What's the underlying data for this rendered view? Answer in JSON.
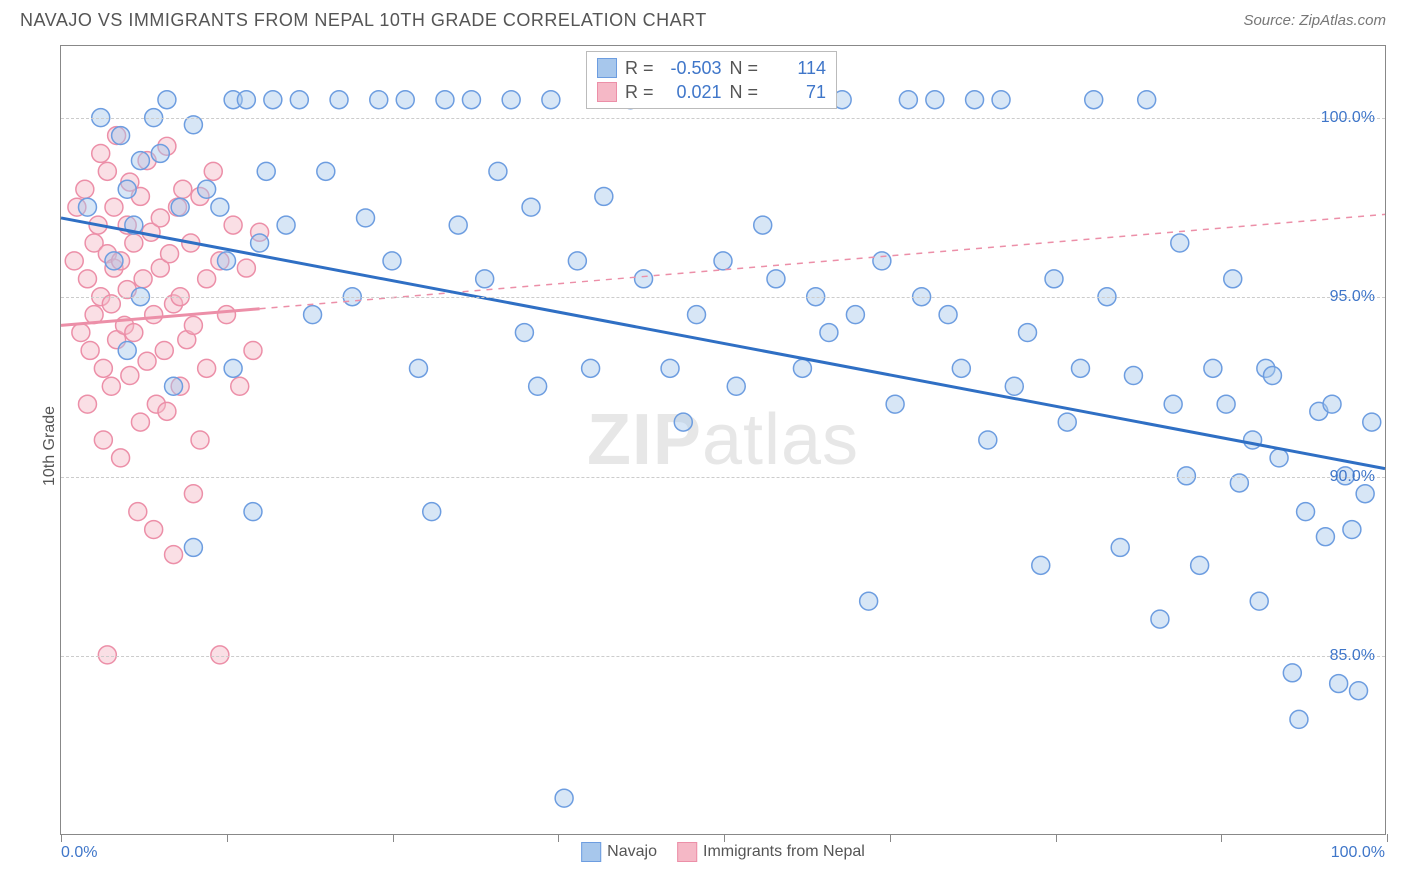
{
  "title": "NAVAJO VS IMMIGRANTS FROM NEPAL 10TH GRADE CORRELATION CHART",
  "source": "Source: ZipAtlas.com",
  "ylabel": "10th Grade",
  "watermark_bold": "ZIP",
  "watermark_rest": "atlas",
  "chart": {
    "type": "scatter",
    "xlim": [
      0,
      100
    ],
    "ylim": [
      80,
      102
    ],
    "x_left_label": "0.0%",
    "x_right_label": "100.0%",
    "xtick_positions": [
      0,
      12.5,
      25,
      37.5,
      50,
      62.5,
      75,
      87.5,
      100
    ],
    "ytick_positions": [
      85,
      90,
      95,
      100
    ],
    "ytick_labels": [
      "85.0%",
      "90.0%",
      "95.0%",
      "100.0%"
    ],
    "grid_color": "#cccccc",
    "background_color": "#ffffff",
    "marker_radius": 9,
    "marker_opacity": 0.45,
    "line_width": 3
  },
  "series": {
    "navajo": {
      "label": "Navajo",
      "color": "#a7c7ec",
      "stroke": "#6d9de0",
      "line_color": "#2f6fc4",
      "R": "-0.503",
      "N": "114",
      "trend": {
        "x1": 0,
        "y1": 97.2,
        "x2": 100,
        "y2": 90.2,
        "solid_until_x": 100
      },
      "points": [
        [
          2,
          97.5
        ],
        [
          3,
          100
        ],
        [
          4,
          96
        ],
        [
          4.5,
          99.5
        ],
        [
          5,
          98
        ],
        [
          5,
          93.5
        ],
        [
          5.5,
          97
        ],
        [
          6,
          98.8
        ],
        [
          6,
          95
        ],
        [
          7,
          100
        ],
        [
          7.5,
          99
        ],
        [
          8,
          100.5
        ],
        [
          8.5,
          92.5
        ],
        [
          9,
          97.5
        ],
        [
          10,
          99.8
        ],
        [
          10,
          88
        ],
        [
          11,
          98
        ],
        [
          12,
          97.5
        ],
        [
          12.5,
          96
        ],
        [
          13,
          100.5
        ],
        [
          13,
          93
        ],
        [
          14,
          100.5
        ],
        [
          14.5,
          89
        ],
        [
          15,
          96.5
        ],
        [
          15.5,
          98.5
        ],
        [
          16,
          100.5
        ],
        [
          17,
          97
        ],
        [
          18,
          100.5
        ],
        [
          19,
          94.5
        ],
        [
          20,
          98.5
        ],
        [
          21,
          100.5
        ],
        [
          22,
          95
        ],
        [
          23,
          97.2
        ],
        [
          24,
          100.5
        ],
        [
          25,
          96
        ],
        [
          26,
          100.5
        ],
        [
          27,
          93
        ],
        [
          28,
          89
        ],
        [
          29,
          100.5
        ],
        [
          30,
          97
        ],
        [
          31,
          100.5
        ],
        [
          32,
          95.5
        ],
        [
          33,
          98.5
        ],
        [
          34,
          100.5
        ],
        [
          35,
          94
        ],
        [
          35.5,
          97.5
        ],
        [
          36,
          92.5
        ],
        [
          37,
          100.5
        ],
        [
          38,
          81
        ],
        [
          39,
          96
        ],
        [
          40,
          93
        ],
        [
          41,
          97.8
        ],
        [
          43,
          100.5
        ],
        [
          44,
          95.5
        ],
        [
          46,
          93
        ],
        [
          47,
          91.5
        ],
        [
          48,
          94.5
        ],
        [
          50,
          96
        ],
        [
          51,
          92.5
        ],
        [
          53,
          97
        ],
        [
          54,
          95.5
        ],
        [
          56,
          93
        ],
        [
          57,
          95
        ],
        [
          58,
          94
        ],
        [
          59,
          100.5
        ],
        [
          60,
          94.5
        ],
        [
          61,
          86.5
        ],
        [
          62,
          96
        ],
        [
          63,
          92
        ],
        [
          64,
          100.5
        ],
        [
          65,
          95
        ],
        [
          66,
          100.5
        ],
        [
          67,
          94.5
        ],
        [
          68,
          93
        ],
        [
          69,
          100.5
        ],
        [
          70,
          91
        ],
        [
          71,
          100.5
        ],
        [
          72,
          92.5
        ],
        [
          73,
          94
        ],
        [
          74,
          87.5
        ],
        [
          75,
          95.5
        ],
        [
          76,
          91.5
        ],
        [
          77,
          93
        ],
        [
          78,
          100.5
        ],
        [
          79,
          95
        ],
        [
          80,
          88
        ],
        [
          81,
          92.8
        ],
        [
          82,
          100.5
        ],
        [
          83,
          86
        ],
        [
          84,
          92
        ],
        [
          84.5,
          96.5
        ],
        [
          85,
          90
        ],
        [
          86,
          87.5
        ],
        [
          87,
          93
        ],
        [
          88,
          92
        ],
        [
          88.5,
          95.5
        ],
        [
          89,
          89.8
        ],
        [
          90,
          91
        ],
        [
          90.5,
          86.5
        ],
        [
          91,
          93
        ],
        [
          91.5,
          92.8
        ],
        [
          92,
          90.5
        ],
        [
          93,
          84.5
        ],
        [
          93.5,
          83.2
        ],
        [
          94,
          89
        ],
        [
          95,
          91.8
        ],
        [
          95.5,
          88.3
        ],
        [
          96,
          92
        ],
        [
          96.5,
          84.2
        ],
        [
          97,
          90
        ],
        [
          97.5,
          88.5
        ],
        [
          98,
          84
        ],
        [
          98.5,
          89.5
        ],
        [
          99,
          91.5
        ]
      ]
    },
    "nepal": {
      "label": "Immigrants from Nepal",
      "color": "#f5b8c6",
      "stroke": "#ec8fa8",
      "line_color": "#ec8fa8",
      "R": "0.021",
      "N": "71",
      "trend": {
        "x1": 0,
        "y1": 94.2,
        "x2": 100,
        "y2": 97.3,
        "solid_until_x": 15
      },
      "points": [
        [
          1,
          96
        ],
        [
          1.2,
          97.5
        ],
        [
          1.5,
          94
        ],
        [
          1.8,
          98
        ],
        [
          2,
          95.5
        ],
        [
          2,
          92
        ],
        [
          2.2,
          93.5
        ],
        [
          2.5,
          96.5
        ],
        [
          2.5,
          94.5
        ],
        [
          2.8,
          97
        ],
        [
          3,
          99
        ],
        [
          3,
          95
        ],
        [
          3.2,
          93
        ],
        [
          3.2,
          91
        ],
        [
          3.5,
          96.2
        ],
        [
          3.5,
          98.5
        ],
        [
          3.8,
          94.8
        ],
        [
          3.8,
          92.5
        ],
        [
          4,
          97.5
        ],
        [
          4,
          95.8
        ],
        [
          4.2,
          99.5
        ],
        [
          4.2,
          93.8
        ],
        [
          4.5,
          96
        ],
        [
          4.5,
          90.5
        ],
        [
          4.8,
          94.2
        ],
        [
          5,
          97
        ],
        [
          5,
          95.2
        ],
        [
          5.2,
          98.2
        ],
        [
          5.2,
          92.8
        ],
        [
          5.5,
          96.5
        ],
        [
          5.5,
          94
        ],
        [
          5.8,
          89
        ],
        [
          6,
          97.8
        ],
        [
          6,
          91.5
        ],
        [
          6.2,
          95.5
        ],
        [
          6.5,
          93.2
        ],
        [
          6.5,
          98.8
        ],
        [
          6.8,
          96.8
        ],
        [
          7,
          94.5
        ],
        [
          7,
          88.5
        ],
        [
          7.2,
          92
        ],
        [
          7.5,
          97.2
        ],
        [
          7.5,
          95.8
        ],
        [
          7.8,
          93.5
        ],
        [
          8,
          99.2
        ],
        [
          8,
          91.8
        ],
        [
          8.2,
          96.2
        ],
        [
          8.5,
          94.8
        ],
        [
          8.5,
          87.8
        ],
        [
          8.8,
          97.5
        ],
        [
          9,
          95
        ],
        [
          9,
          92.5
        ],
        [
          9.2,
          98
        ],
        [
          9.5,
          93.8
        ],
        [
          9.8,
          96.5
        ],
        [
          10,
          94.2
        ],
        [
          10,
          89.5
        ],
        [
          10.5,
          97.8
        ],
        [
          10.5,
          91
        ],
        [
          11,
          95.5
        ],
        [
          11,
          93
        ],
        [
          11.5,
          98.5
        ],
        [
          12,
          96
        ],
        [
          12,
          85
        ],
        [
          12.5,
          94.5
        ],
        [
          13,
          97
        ],
        [
          13.5,
          92.5
        ],
        [
          14,
          95.8
        ],
        [
          14.5,
          93.5
        ],
        [
          15,
          96.8
        ],
        [
          3.5,
          85
        ]
      ]
    }
  },
  "stats_labels": {
    "R": "R =",
    "N": "N ="
  }
}
